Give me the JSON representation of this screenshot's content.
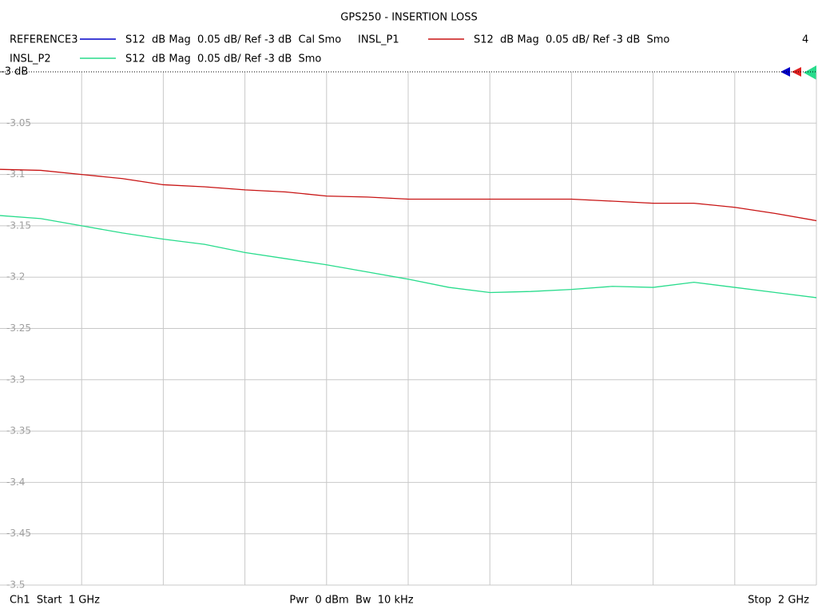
{
  "chart_data": {
    "type": "line",
    "title": "GPS250 - INSERTION LOSS",
    "x": [
      1.0,
      1.05,
      1.1,
      1.15,
      1.2,
      1.25,
      1.3,
      1.35,
      1.4,
      1.45,
      1.5,
      1.55,
      1.6,
      1.65,
      1.7,
      1.75,
      1.8,
      1.85,
      1.9,
      1.95,
      2.0
    ],
    "series": [
      {
        "name": "REFERENCE3",
        "description": "S12  dB Mag  0.05 dB/ Ref -3 dB  Cal Smo",
        "color": "#0000c8"
      },
      {
        "name": "INSL_P1",
        "description": "S12  dB Mag  0.05 dB/ Ref -3 dB  Smo",
        "color": "#c81414",
        "values": [
          -3.095,
          -3.096,
          -3.1,
          -3.104,
          -3.11,
          -3.112,
          -3.115,
          -3.117,
          -3.121,
          -3.122,
          -3.124,
          -3.124,
          -3.124,
          -3.124,
          -3.124,
          -3.126,
          -3.128,
          -3.128,
          -3.132,
          -3.138,
          -3.145
        ]
      },
      {
        "name": "INSL_P2",
        "description": "S12  dB Mag  0.05 dB/ Ref -3 dB  Smo",
        "color": "#28dc8c",
        "values": [
          -3.14,
          -3.143,
          -3.15,
          -3.157,
          -3.163,
          -3.168,
          -3.176,
          -3.182,
          -3.188,
          -3.195,
          -3.202,
          -3.21,
          -3.215,
          -3.214,
          -3.212,
          -3.209,
          -3.21,
          -3.205,
          -3.21,
          -3.215,
          -3.22
        ]
      }
    ],
    "corner_text": "4",
    "xlim": [
      1,
      2
    ],
    "xticks": [
      1.1,
      1.2,
      1.3,
      1.4,
      1.5,
      1.6,
      1.7,
      1.8,
      1.9,
      2
    ],
    "ylim": [
      -3.5,
      -3
    ],
    "yticks": [
      {
        "value": -3,
        "label": "-3 dB"
      },
      -3.05,
      -3.1,
      -3.15,
      -3.2,
      -3.25,
      -3.3,
      -3.35,
      -3.4,
      -3.45,
      -3.5
    ],
    "grid": true,
    "footer": {
      "left": "Ch1  Start  1 GHz",
      "center": "Pwr  0 dBm  Bw  10 kHz",
      "right": "Stop  2 GHz"
    }
  }
}
